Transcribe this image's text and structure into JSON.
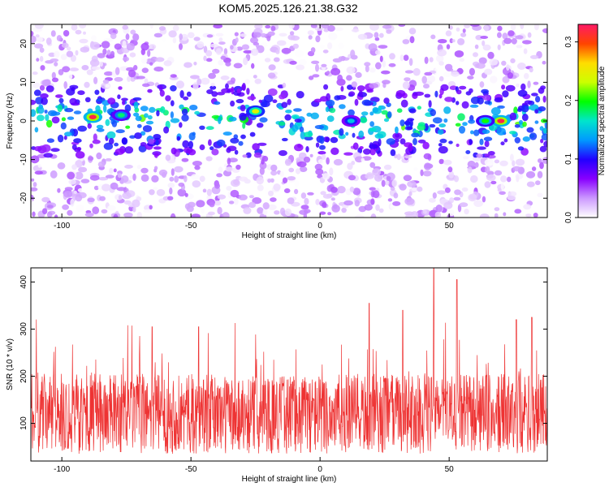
{
  "title": "KOM5.2025.126.21.38.G32",
  "colors": {
    "snr_line": "#ee3333",
    "colormap": [
      "#ffffff",
      "#cc99ff",
      "#8800ff",
      "#2200ff",
      "#0099ff",
      "#00e5cc",
      "#00ff00",
      "#ccff00",
      "#ffdd00",
      "#ff4400",
      "#ff1a66"
    ]
  },
  "chart_data": [
    {
      "type": "heatmap",
      "xlabel": "Height of straight line (km)",
      "ylabel": "Frequency (Hz)",
      "xlim": [
        -112,
        88
      ],
      "ylim": [
        -25,
        25
      ],
      "x_ticks": [
        -100,
        -50,
        0,
        50
      ],
      "y_ticks": [
        -20,
        -10,
        0,
        10,
        20
      ],
      "colorbar": {
        "label": "Normalized spectral amplitude",
        "range": [
          0.0,
          0.33
        ],
        "ticks": [
          "0.0",
          "0.1",
          "0.2",
          "0.3"
        ]
      },
      "band_center_hz": 0,
      "band_halfwidth_hz": 9,
      "peaks": [
        {
          "x": -88,
          "y": 1,
          "value": 0.32
        },
        {
          "x": 70,
          "y": 0,
          "value": 0.32
        },
        {
          "x": -25,
          "y": 2.5,
          "value": 0.24
        },
        {
          "x": 64,
          "y": 0,
          "value": 0.2
        },
        {
          "x": -77,
          "y": 1.5,
          "value": 0.18
        },
        {
          "x": 12,
          "y": 0,
          "value": 0.15
        }
      ]
    },
    {
      "type": "line",
      "xlabel": "Height of straight line (km)",
      "ylabel": "SNR (10 * v/v)",
      "xlim": [
        -112,
        88
      ],
      "ylim": [
        20,
        430
      ],
      "x_ticks": [
        -100,
        -50,
        0,
        50
      ],
      "y_ticks": [
        100,
        200,
        300,
        400
      ],
      "series": [
        {
          "approx_mean": 120,
          "approx_range": [
            20,
            430
          ],
          "peaks": [
            {
              "x": 44,
              "y": 430
            },
            {
              "x": 53,
              "y": 405
            },
            {
              "x": 19,
              "y": 355
            },
            {
              "x": 32,
              "y": 340
            },
            {
              "x": 82,
              "y": 325
            },
            {
              "x": 76,
              "y": 320
            },
            {
              "x": -65,
              "y": 305
            },
            {
              "x": -47,
              "y": 305
            }
          ]
        }
      ]
    }
  ]
}
